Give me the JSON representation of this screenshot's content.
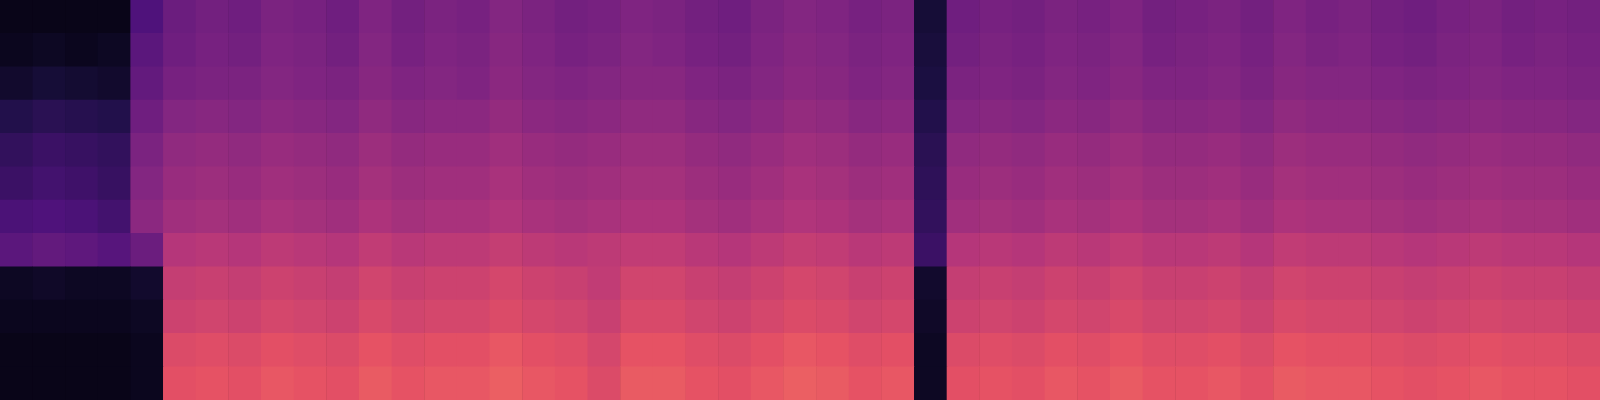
{
  "chart_data": {
    "type": "heatmap",
    "tick_labels": false,
    "grid": false,
    "zlim": [
      0,
      1
    ],
    "cells": [
      [
        0.04,
        0.04,
        0.04,
        0.04,
        0.25,
        0.32,
        0.34,
        0.33,
        0.36,
        0.35,
        0.33,
        0.37,
        0.34,
        0.36,
        0.35,
        0.38,
        0.36,
        0.34,
        0.35,
        0.37,
        0.36,
        0.34,
        0.33,
        0.36,
        0.38,
        0.37,
        0.35,
        0.36,
        0.1,
        0.33,
        0.35,
        0.34,
        0.36,
        0.35,
        0.37,
        0.34,
        0.35,
        0.36,
        0.34,
        0.37,
        0.35,
        0.36,
        0.34,
        0.33,
        0.35,
        0.36,
        0.34,
        0.35,
        0.34
      ],
      [
        0.05,
        0.06,
        0.05,
        0.06,
        0.28,
        0.33,
        0.35,
        0.34,
        0.37,
        0.36,
        0.34,
        0.38,
        0.35,
        0.37,
        0.36,
        0.39,
        0.37,
        0.35,
        0.36,
        0.38,
        0.37,
        0.35,
        0.34,
        0.37,
        0.39,
        0.38,
        0.36,
        0.37,
        0.11,
        0.34,
        0.36,
        0.35,
        0.37,
        0.36,
        0.38,
        0.35,
        0.36,
        0.37,
        0.35,
        0.38,
        0.36,
        0.37,
        0.35,
        0.34,
        0.36,
        0.37,
        0.35,
        0.36,
        0.35
      ],
      [
        0.08,
        0.1,
        0.09,
        0.08,
        0.3,
        0.35,
        0.36,
        0.36,
        0.38,
        0.37,
        0.36,
        0.39,
        0.37,
        0.38,
        0.37,
        0.4,
        0.38,
        0.37,
        0.38,
        0.39,
        0.39,
        0.37,
        0.36,
        0.38,
        0.4,
        0.39,
        0.37,
        0.38,
        0.12,
        0.36,
        0.37,
        0.36,
        0.38,
        0.37,
        0.39,
        0.37,
        0.37,
        0.38,
        0.36,
        0.39,
        0.38,
        0.38,
        0.37,
        0.36,
        0.37,
        0.38,
        0.37,
        0.37,
        0.36
      ],
      [
        0.14,
        0.16,
        0.15,
        0.14,
        0.33,
        0.38,
        0.39,
        0.38,
        0.4,
        0.39,
        0.38,
        0.41,
        0.39,
        0.4,
        0.4,
        0.42,
        0.4,
        0.39,
        0.4,
        0.41,
        0.41,
        0.39,
        0.38,
        0.4,
        0.42,
        0.41,
        0.39,
        0.4,
        0.14,
        0.38,
        0.39,
        0.38,
        0.4,
        0.39,
        0.41,
        0.39,
        0.39,
        0.4,
        0.38,
        0.41,
        0.4,
        0.4,
        0.39,
        0.38,
        0.39,
        0.4,
        0.39,
        0.39,
        0.38
      ],
      [
        0.18,
        0.2,
        0.19,
        0.18,
        0.36,
        0.41,
        0.42,
        0.41,
        0.43,
        0.42,
        0.41,
        0.44,
        0.42,
        0.43,
        0.43,
        0.45,
        0.43,
        0.42,
        0.43,
        0.44,
        0.44,
        0.42,
        0.41,
        0.43,
        0.45,
        0.44,
        0.42,
        0.43,
        0.16,
        0.41,
        0.42,
        0.41,
        0.43,
        0.42,
        0.44,
        0.42,
        0.42,
        0.43,
        0.41,
        0.44,
        0.43,
        0.43,
        0.42,
        0.41,
        0.42,
        0.43,
        0.42,
        0.42,
        0.41
      ],
      [
        0.2,
        0.22,
        0.21,
        0.19,
        0.38,
        0.43,
        0.44,
        0.43,
        0.45,
        0.44,
        0.43,
        0.46,
        0.44,
        0.45,
        0.45,
        0.47,
        0.45,
        0.44,
        0.45,
        0.46,
        0.46,
        0.44,
        0.43,
        0.45,
        0.47,
        0.46,
        0.44,
        0.45,
        0.17,
        0.43,
        0.44,
        0.43,
        0.45,
        0.44,
        0.46,
        0.44,
        0.44,
        0.45,
        0.43,
        0.46,
        0.45,
        0.45,
        0.44,
        0.43,
        0.44,
        0.45,
        0.44,
        0.44,
        0.43
      ],
      [
        0.24,
        0.25,
        0.24,
        0.22,
        0.4,
        0.45,
        0.46,
        0.45,
        0.47,
        0.46,
        0.45,
        0.48,
        0.46,
        0.47,
        0.47,
        0.49,
        0.47,
        0.46,
        0.47,
        0.48,
        0.48,
        0.46,
        0.45,
        0.47,
        0.49,
        0.48,
        0.46,
        0.47,
        0.18,
        0.45,
        0.46,
        0.45,
        0.47,
        0.46,
        0.48,
        0.46,
        0.46,
        0.47,
        0.45,
        0.48,
        0.47,
        0.47,
        0.46,
        0.45,
        0.46,
        0.47,
        0.46,
        0.46,
        0.45
      ],
      [
        0.28,
        0.3,
        0.29,
        0.27,
        0.32,
        0.5,
        0.51,
        0.5,
        0.52,
        0.51,
        0.5,
        0.53,
        0.51,
        0.52,
        0.52,
        0.54,
        0.52,
        0.51,
        0.52,
        0.53,
        0.53,
        0.51,
        0.5,
        0.52,
        0.54,
        0.53,
        0.51,
        0.52,
        0.2,
        0.5,
        0.51,
        0.5,
        0.52,
        0.51,
        0.53,
        0.51,
        0.51,
        0.52,
        0.5,
        0.53,
        0.52,
        0.52,
        0.51,
        0.5,
        0.51,
        0.52,
        0.51,
        0.51,
        0.5
      ],
      [
        0.06,
        0.07,
        0.06,
        0.06,
        0.08,
        0.54,
        0.55,
        0.54,
        0.56,
        0.55,
        0.54,
        0.57,
        0.55,
        0.56,
        0.56,
        0.58,
        0.56,
        0.55,
        0.53,
        0.57,
        0.57,
        0.55,
        0.54,
        0.56,
        0.58,
        0.57,
        0.55,
        0.56,
        0.08,
        0.54,
        0.55,
        0.54,
        0.56,
        0.55,
        0.57,
        0.55,
        0.55,
        0.56,
        0.54,
        0.57,
        0.56,
        0.56,
        0.55,
        0.54,
        0.55,
        0.56,
        0.55,
        0.55,
        0.54
      ],
      [
        0.05,
        0.05,
        0.05,
        0.05,
        0.06,
        0.56,
        0.57,
        0.56,
        0.58,
        0.57,
        0.56,
        0.59,
        0.57,
        0.58,
        0.58,
        0.6,
        0.58,
        0.57,
        0.55,
        0.59,
        0.59,
        0.57,
        0.56,
        0.58,
        0.6,
        0.59,
        0.57,
        0.58,
        0.07,
        0.56,
        0.57,
        0.56,
        0.58,
        0.57,
        0.59,
        0.57,
        0.57,
        0.58,
        0.56,
        0.59,
        0.58,
        0.58,
        0.57,
        0.56,
        0.57,
        0.58,
        0.57,
        0.57,
        0.56
      ],
      [
        0.04,
        0.04,
        0.04,
        0.04,
        0.05,
        0.6,
        0.61,
        0.6,
        0.62,
        0.61,
        0.6,
        0.63,
        0.61,
        0.62,
        0.62,
        0.64,
        0.62,
        0.61,
        0.58,
        0.63,
        0.63,
        0.61,
        0.6,
        0.62,
        0.64,
        0.63,
        0.61,
        0.62,
        0.06,
        0.6,
        0.61,
        0.6,
        0.62,
        0.61,
        0.63,
        0.61,
        0.61,
        0.62,
        0.6,
        0.63,
        0.62,
        0.62,
        0.61,
        0.6,
        0.61,
        0.62,
        0.61,
        0.61,
        0.6
      ],
      [
        0.04,
        0.04,
        0.04,
        0.04,
        0.05,
        0.62,
        0.63,
        0.62,
        0.64,
        0.63,
        0.62,
        0.65,
        0.63,
        0.64,
        0.64,
        0.66,
        0.64,
        0.63,
        0.6,
        0.65,
        0.65,
        0.63,
        0.62,
        0.64,
        0.66,
        0.65,
        0.63,
        0.64,
        0.06,
        0.62,
        0.63,
        0.62,
        0.64,
        0.63,
        0.65,
        0.63,
        0.63,
        0.64,
        0.62,
        0.65,
        0.64,
        0.64,
        0.63,
        0.62,
        0.63,
        0.64,
        0.63,
        0.63,
        0.62
      ]
    ]
  }
}
